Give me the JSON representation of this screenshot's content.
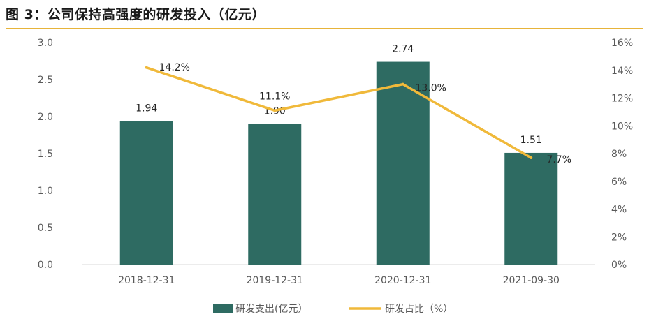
{
  "figure": {
    "title": "图 3：公司保持高强度的研发投入（亿元）"
  },
  "colors": {
    "bar": "#2e6b62",
    "line": "#f0b93a",
    "axis_text": "#595959",
    "title_rule": "#e7b43a"
  },
  "chart_data": {
    "type": "bar",
    "categories": [
      "2018-12-31",
      "2019-12-31",
      "2020-12-31",
      "2021-09-30"
    ],
    "series": [
      {
        "name": "研发支出(亿元）",
        "type": "bar",
        "axis": "left",
        "values": [
          1.94,
          1.9,
          2.74,
          1.51
        ],
        "labels": [
          "1.94",
          "1.90",
          "2.74",
          "1.51"
        ]
      },
      {
        "name": "研发占比（%）",
        "type": "line",
        "axis": "right",
        "values": [
          14.2,
          11.1,
          13.0,
          7.7
        ],
        "labels": [
          "14.2%",
          "11.1%",
          "13.0%",
          "7.7%"
        ]
      }
    ],
    "y_left": {
      "min": 0,
      "max": 3.0,
      "ticks": [
        "0.0",
        "0.5",
        "1.0",
        "1.5",
        "2.0",
        "2.5",
        "3.0"
      ]
    },
    "y_right": {
      "min": 0,
      "max": 16,
      "ticks": [
        "0%",
        "2%",
        "4%",
        "6%",
        "8%",
        "10%",
        "12%",
        "14%",
        "16%"
      ]
    },
    "grid": false,
    "legend": "bottom"
  }
}
